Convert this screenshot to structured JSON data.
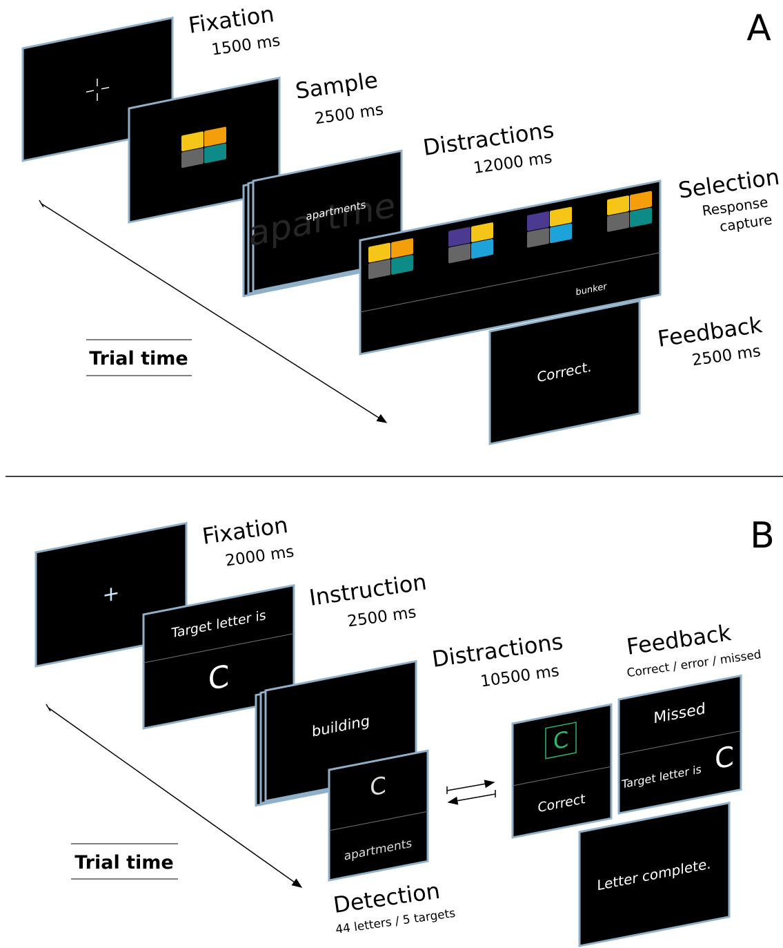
{
  "panel_a": {
    "label": "A",
    "trial_time": "Trial time",
    "fixation": {
      "title": "Fixation",
      "duration": "1500 ms"
    },
    "sample": {
      "title": "Sample",
      "duration": "2500 ms"
    },
    "distractions": {
      "title": "Distractions",
      "duration": "12000 ms",
      "word": "apartments",
      "background_word": "apartme"
    },
    "selection": {
      "title": "Selection",
      "subtitle": [
        "Response",
        "capture"
      ],
      "word": "bunker"
    },
    "feedback": {
      "title": "Feedback",
      "duration": "2500 ms",
      "message": "Correct."
    }
  },
  "panel_b": {
    "label": "B",
    "trial_time": "Trial time",
    "fixation": {
      "title": "Fixation",
      "duration": "2000 ms",
      "symbol": "+"
    },
    "instruction": {
      "title": "Instruction",
      "duration": "2500 ms",
      "prompt": "Target letter is",
      "letter": "C"
    },
    "distractions": {
      "title": "Distractions",
      "duration": "10500 ms",
      "word": "building"
    },
    "detection": {
      "title": "Detection",
      "subtitle": "44 letters / 5 targets",
      "letter": "C",
      "word": "apartments"
    },
    "feedback": {
      "title": "Feedback",
      "subtitle": "Correct / error / missed",
      "correct": {
        "letter": "C",
        "message": "Correct"
      },
      "missed": {
        "message": "Missed",
        "prompt": "Target letter is",
        "letter": "C"
      },
      "complete": {
        "message": "Letter complete."
      }
    }
  }
}
